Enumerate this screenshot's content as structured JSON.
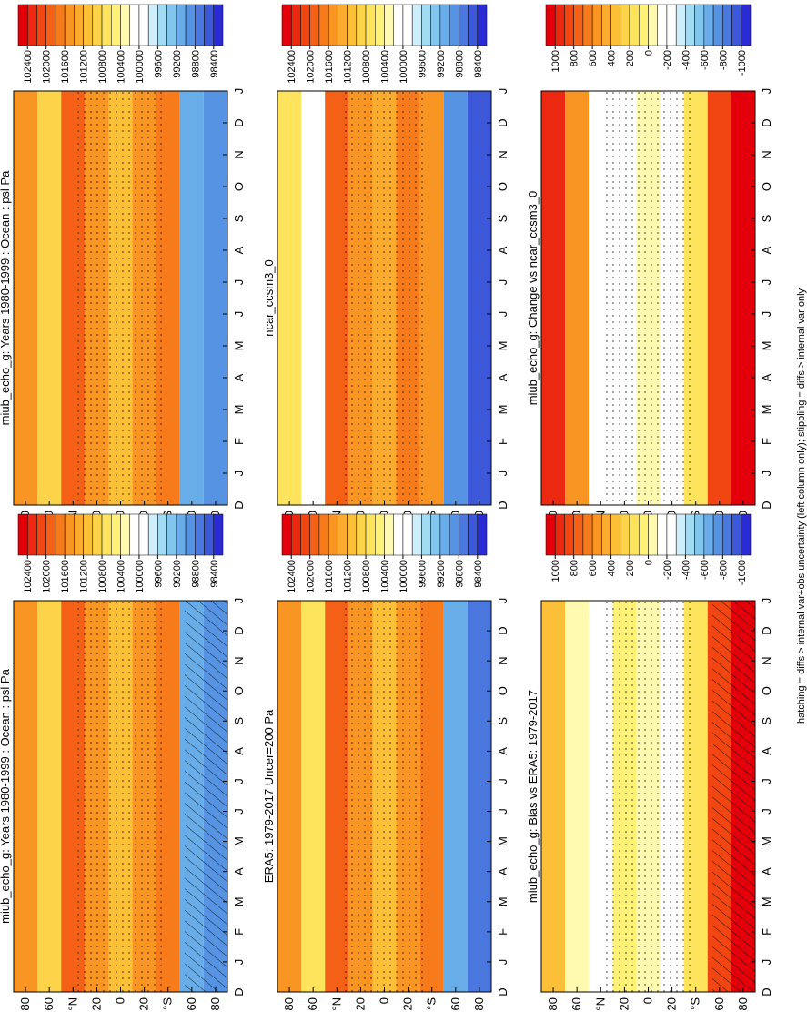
{
  "chart_data": [
    {
      "type": "heatmap",
      "title": "miub_echo_g: Years 1980-1999 : Ocean : psl Pa",
      "categories": [
        "D",
        "J",
        "F",
        "M",
        "A",
        "M",
        "J",
        "J",
        "A",
        "S",
        "O",
        "N",
        "D",
        "J"
      ],
      "ylim": [
        90,
        -90
      ],
      "yticks": [
        80,
        60,
        {
          "value": 40,
          "label": "°N"
        },
        20,
        0,
        {
          "value": -20,
          "label": "20"
        },
        {
          "value": -40,
          "label": "°S"
        },
        {
          "value": -60,
          "label": "60"
        },
        {
          "value": -80,
          "label": "80"
        }
      ],
      "field_lats": [
        80,
        60,
        40,
        20,
        0,
        -20,
        -40,
        -60,
        -80
      ],
      "field": [
        101400,
        100800,
        101800,
        101400,
        101100,
        101500,
        101700,
        99000,
        98900
      ],
      "colorbar": {
        "ticks": [
          102400,
          102000,
          101600,
          101200,
          100800,
          100400,
          100000,
          99600,
          99200,
          98800,
          98400
        ]
      }
    },
    {
      "type": "heatmap",
      "title": "ncar_ccsm3_0",
      "categories": [
        "D",
        "J",
        "F",
        "M",
        "A",
        "M",
        "J",
        "J",
        "A",
        "S",
        "O",
        "N",
        "D",
        "J"
      ],
      "ylim": [
        90,
        -90
      ],
      "yticks": [
        80,
        60,
        {
          "value": 40,
          "label": "°N"
        },
        20,
        0,
        {
          "value": -20,
          "label": "20"
        },
        {
          "value": -40,
          "label": "°S"
        },
        {
          "value": -60,
          "label": "60"
        },
        {
          "value": -80,
          "label": "80"
        }
      ],
      "field_lats": [
        80,
        60,
        40,
        20,
        0,
        -20,
        -40,
        -60,
        -80
      ],
      "field": [
        100600,
        100000,
        101900,
        101500,
        101200,
        101600,
        101400,
        98800,
        98400
      ],
      "colorbar": {
        "ticks": [
          102400,
          102000,
          101600,
          101200,
          100800,
          100400,
          100000,
          99600,
          99200,
          98800,
          98400
        ]
      }
    },
    {
      "type": "heatmap",
      "title": "miub_echo_g: Change vs ncar_ccsm3_0",
      "categories": [
        "D",
        "J",
        "F",
        "M",
        "A",
        "M",
        "J",
        "J",
        "A",
        "S",
        "O",
        "N",
        "D",
        "J"
      ],
      "ylim": [
        90,
        -90
      ],
      "yticks": [
        80,
        60,
        {
          "value": 40,
          "label": "°N"
        },
        20,
        0,
        {
          "value": -20,
          "label": "20"
        },
        {
          "value": -40,
          "label": "°S"
        },
        {
          "value": -60,
          "label": "60"
        },
        {
          "value": -80,
          "label": "80"
        }
      ],
      "field_lats": [
        80,
        60,
        40,
        20,
        0,
        -20,
        -40,
        -60,
        -80
      ],
      "field": [
        900,
        500,
        -300,
        -300,
        -100,
        -300,
        100,
        800,
        1000
      ],
      "colorbar": {
        "ticks": [
          1000,
          800,
          600,
          400,
          200,
          0,
          -200,
          -400,
          -600,
          -800,
          -1000
        ]
      }
    },
    {
      "type": "heatmap",
      "title": "miub_echo_g: Years 1980-1999 : Ocean : psl Pa",
      "categories": [
        "D",
        "J",
        "F",
        "M",
        "A",
        "M",
        "J",
        "J",
        "A",
        "S",
        "O",
        "N",
        "D",
        "J"
      ],
      "ylim": [
        90,
        -90
      ],
      "yticks": [
        80,
        60,
        {
          "value": 40,
          "label": "°N"
        },
        20,
        0,
        {
          "value": -20,
          "label": "20"
        },
        {
          "value": -40,
          "label": "°S"
        },
        {
          "value": -60,
          "label": "60"
        },
        {
          "value": -80,
          "label": "80"
        }
      ],
      "field_lats": [
        80,
        60,
        40,
        20,
        0,
        -20,
        -40,
        -60,
        -80
      ],
      "field": [
        101400,
        100800,
        101800,
        101400,
        101100,
        101500,
        101700,
        99000,
        98900
      ],
      "colorbar": {
        "ticks": [
          102400,
          102000,
          101600,
          101200,
          100800,
          100400,
          100000,
          99600,
          99200,
          98800,
          98400
        ]
      }
    },
    {
      "type": "heatmap",
      "title": "ERA5: 1979-2017 Uncer=200 Pa",
      "categories": [
        "D",
        "J",
        "F",
        "M",
        "A",
        "M",
        "J",
        "J",
        "A",
        "S",
        "O",
        "N",
        "D",
        "J"
      ],
      "ylim": [
        90,
        -90
      ],
      "yticks": [
        80,
        60,
        {
          "value": 40,
          "label": "°N"
        },
        20,
        0,
        {
          "value": -20,
          "label": "20"
        },
        {
          "value": -40,
          "label": "°S"
        },
        {
          "value": -60,
          "label": "60"
        },
        {
          "value": -80,
          "label": "80"
        }
      ],
      "field_lats": [
        80,
        60,
        40,
        20,
        0,
        -20,
        -40,
        -60,
        -80
      ],
      "field": [
        101400,
        100600,
        101800,
        101400,
        101100,
        101500,
        101600,
        99000,
        98600
      ],
      "colorbar": {
        "ticks": [
          102400,
          102000,
          101600,
          101200,
          100800,
          100400,
          100000,
          99600,
          99200,
          98800,
          98400
        ]
      }
    },
    {
      "type": "heatmap",
      "title": "miub_echo_g: Bias vs ERA5: 1979-2017",
      "categories": [
        "D",
        "J",
        "F",
        "M",
        "A",
        "M",
        "J",
        "J",
        "A",
        "S",
        "O",
        "N",
        "D",
        "J"
      ],
      "ylim": [
        90,
        -90
      ],
      "yticks": [
        80,
        60,
        {
          "value": 40,
          "label": "°N"
        },
        20,
        0,
        {
          "value": -20,
          "label": "20"
        },
        {
          "value": -40,
          "label": "°S"
        },
        {
          "value": -60,
          "label": "60"
        },
        {
          "value": -80,
          "label": "80"
        }
      ],
      "field_lats": [
        80,
        60,
        40,
        20,
        0,
        -20,
        -40,
        -60,
        -80
      ],
      "field": [
        300,
        -100,
        -300,
        0,
        -100,
        -300,
        100,
        800,
        1000
      ],
      "colorbar": {
        "ticks": [
          1000,
          800,
          600,
          400,
          200,
          0,
          -200,
          -400,
          -600,
          -800,
          -1000
        ]
      }
    }
  ],
  "footnote": "hatching = diffs > internal var+obs uncertainty (left column only); stippling = diffs > internal var only",
  "palette": [
    "#e3000b",
    "#ec2810",
    "#f14612",
    "#f46116",
    "#f77b1b",
    "#f99523",
    "#fbab2d",
    "#fcc038",
    "#fdd449",
    "#fee45d",
    "#fff276",
    "#fffab0",
    "#ffffff",
    "#ffffff",
    "#cdeefa",
    "#a2dcf3",
    "#82c6ee",
    "#69ade8",
    "#5793e3",
    "#4a78df",
    "#3d59da",
    "#2b2bd5"
  ]
}
